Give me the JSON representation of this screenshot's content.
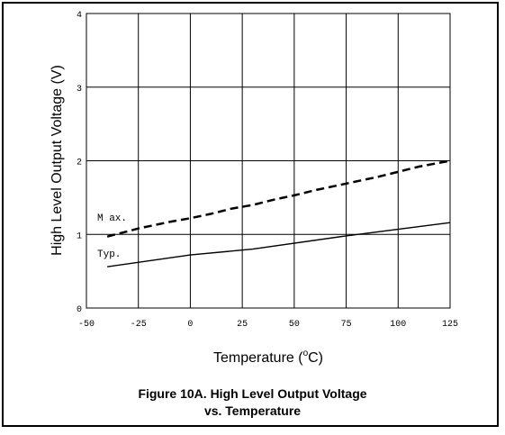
{
  "chart_data": {
    "type": "line",
    "xlabel_prefix": "Temperature (",
    "xlabel_sup": "o",
    "xlabel_suffix": "C)",
    "ylabel": "High Level Output Voltage (V)",
    "xlim": [
      -50,
      125
    ],
    "ylim": [
      0,
      4
    ],
    "x_ticks": [
      -50,
      -25,
      0,
      25,
      50,
      75,
      100,
      125
    ],
    "y_ticks": [
      0,
      1,
      2,
      3,
      4
    ],
    "grid": true,
    "series": [
      {
        "name": "M ax.",
        "style": "dashed",
        "x": [
          -40,
          -25,
          -10,
          0,
          10,
          20,
          30,
          40,
          50,
          60,
          70,
          80,
          90,
          100,
          110,
          125
        ],
        "y": [
          0.97,
          1.08,
          1.17,
          1.22,
          1.28,
          1.35,
          1.4,
          1.47,
          1.53,
          1.6,
          1.66,
          1.72,
          1.78,
          1.85,
          1.92,
          2.0
        ]
      },
      {
        "name": "Typ.",
        "style": "solid",
        "x": [
          -40,
          0,
          30,
          75,
          125
        ],
        "y": [
          0.56,
          0.72,
          0.8,
          0.98,
          1.16
        ]
      }
    ]
  },
  "caption": {
    "line1": "Figure 10A. High Level  Output Voltage",
    "line2": "vs. Temperature"
  }
}
